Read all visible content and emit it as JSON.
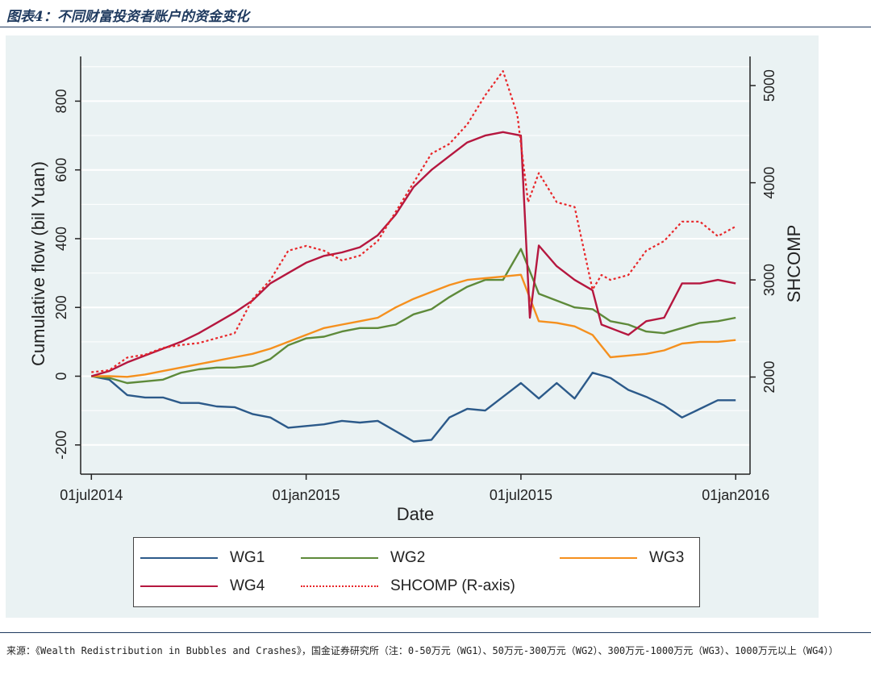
{
  "figure": {
    "title": "图表4：不同财富投资者账户的资金变化",
    "source_note": "来源：《Wealth Redistribution in Bubbles and Crashes》，国金证券研究所（注：0-50万元（WG1）、50万元-300万元（WG2）、300万元-1000万元（WG3）、1000万元以上（WG4））"
  },
  "colors": {
    "WG1": "#2c5a8a",
    "WG2": "#5e8a3a",
    "WG3": "#f5901e",
    "WG4": "#b5173f",
    "SHCOMP": "#e8272a",
    "text": "#222222"
  },
  "chart_data": {
    "type": "line",
    "title": "",
    "xlabel": "Date",
    "ylabel": "Cumulative flow (bil Yuan)",
    "y2label": "SHCOMP",
    "x_ticks": [
      "01jul2014",
      "01jan2015",
      "01jul2015",
      "01jan2016"
    ],
    "x_tick_months": [
      0,
      6,
      12,
      18
    ],
    "xlim_months": [
      -0.3,
      18.4
    ],
    "y_ticks": [
      -200,
      0,
      200,
      400,
      600,
      800
    ],
    "y_ticks_labels": [
      "-200",
      "0",
      "200",
      "400",
      "600",
      "800"
    ],
    "ylim": [
      -285,
      930
    ],
    "y2_ticks": [
      2000,
      3000,
      4000,
      5000
    ],
    "y2_ticks_labels": [
      "2000",
      "3000",
      "4000",
      "5000"
    ],
    "y2lim": [
      1000,
      5300
    ],
    "legend": [
      "WG1",
      "WG2",
      "WG3",
      "WG4",
      "SHCOMP (R-axis)"
    ],
    "series": [
      {
        "name": "WG1",
        "label": "WG1",
        "axis": "left",
        "style": "solid",
        "x": [
          0,
          0.5,
          1,
          1.5,
          2,
          2.5,
          3,
          3.5,
          4,
          4.5,
          5,
          5.5,
          6,
          6.5,
          7,
          7.5,
          8,
          8.5,
          9,
          9.5,
          10,
          10.5,
          11,
          11.5,
          12,
          12.5,
          13,
          13.5,
          14,
          14.5,
          15,
          15.5,
          16,
          16.5,
          17,
          17.5,
          18
        ],
        "y": [
          0,
          -10,
          -55,
          -62,
          -62,
          -78,
          -78,
          -88,
          -90,
          -110,
          -120,
          -150,
          -145,
          -140,
          -130,
          -135,
          -130,
          -160,
          -190,
          -185,
          -120,
          -95,
          -100,
          -60,
          -20,
          -65,
          -20,
          -65,
          10,
          -5,
          -40,
          -60,
          -85,
          -120,
          -95,
          -70,
          -70
        ]
      },
      {
        "name": "WG2",
        "label": "WG2",
        "axis": "left",
        "style": "solid",
        "x": [
          0,
          0.5,
          1,
          1.5,
          2,
          2.5,
          3,
          3.5,
          4,
          4.5,
          5,
          5.5,
          6,
          6.5,
          7,
          7.5,
          8,
          8.5,
          9,
          9.5,
          10,
          10.5,
          11,
          11.5,
          12,
          12.5,
          13,
          13.5,
          14,
          14.5,
          15,
          15.5,
          16,
          16.5,
          17,
          17.5,
          18
        ],
        "y": [
          0,
          -5,
          -20,
          -15,
          -10,
          10,
          20,
          25,
          25,
          30,
          50,
          90,
          110,
          115,
          130,
          140,
          140,
          150,
          180,
          195,
          230,
          260,
          280,
          280,
          370,
          240,
          220,
          200,
          195,
          160,
          150,
          130,
          125,
          140,
          155,
          160,
          170
        ]
      },
      {
        "name": "WG3",
        "label": "WG3",
        "axis": "left",
        "style": "solid",
        "x": [
          0,
          0.5,
          1,
          1.5,
          2,
          2.5,
          3,
          3.5,
          4,
          4.5,
          5,
          5.5,
          6,
          6.5,
          7,
          7.5,
          8,
          8.5,
          9,
          9.5,
          10,
          10.5,
          11,
          11.5,
          12,
          12.5,
          13,
          13.5,
          14,
          14.5,
          15,
          15.5,
          16,
          16.5,
          17,
          17.5,
          18
        ],
        "y": [
          0,
          0,
          -2,
          5,
          15,
          25,
          35,
          45,
          55,
          65,
          80,
          100,
          120,
          140,
          150,
          160,
          170,
          200,
          225,
          245,
          265,
          280,
          285,
          290,
          295,
          160,
          155,
          145,
          120,
          55,
          60,
          65,
          75,
          95,
          100,
          100,
          105
        ]
      },
      {
        "name": "WG4",
        "label": "WG4",
        "axis": "left",
        "style": "solid",
        "x": [
          0,
          0.5,
          1,
          1.5,
          2,
          2.5,
          3,
          3.5,
          4,
          4.5,
          5,
          5.5,
          6,
          6.5,
          7,
          7.5,
          8,
          8.5,
          9,
          9.5,
          10,
          10.5,
          11,
          11.5,
          12,
          12.25,
          12.5,
          13,
          13.5,
          14,
          14.25,
          14.5,
          15,
          15.5,
          16,
          16.5,
          17,
          17.5,
          18
        ],
        "y": [
          0,
          15,
          40,
          60,
          80,
          100,
          125,
          155,
          185,
          220,
          270,
          300,
          330,
          350,
          360,
          375,
          410,
          470,
          550,
          600,
          640,
          680,
          700,
          710,
          700,
          170,
          380,
          320,
          280,
          250,
          150,
          140,
          120,
          160,
          170,
          270,
          270,
          280,
          270
        ]
      },
      {
        "name": "SHCOMP",
        "label": "SHCOMP (R-axis)",
        "axis": "right",
        "style": "dotted",
        "x": [
          0,
          0.5,
          1,
          1.5,
          2,
          2.5,
          3,
          3.5,
          4,
          4.5,
          5,
          5.5,
          6,
          6.5,
          7,
          7.5,
          8,
          8.5,
          9,
          9.5,
          10,
          10.5,
          11,
          11.5,
          11.9,
          12.2,
          12.5,
          13,
          13.5,
          14,
          14.25,
          14.5,
          15,
          15.5,
          16,
          16.5,
          17,
          17.5,
          18
        ],
        "y": [
          2050,
          2070,
          2200,
          2230,
          2300,
          2330,
          2350,
          2400,
          2450,
          2800,
          3000,
          3300,
          3350,
          3300,
          3200,
          3250,
          3400,
          3700,
          4000,
          4300,
          4400,
          4600,
          4900,
          5150,
          4700,
          3800,
          4100,
          3800,
          3750,
          2900,
          3050,
          3000,
          3050,
          3300,
          3400,
          3600,
          3600,
          3450,
          3550
        ]
      }
    ]
  },
  "legend_labels": {
    "wg1": "WG1",
    "wg2": "WG2",
    "wg3": "WG3",
    "wg4": "WG4",
    "shcomp": "SHCOMP (R-axis)"
  }
}
